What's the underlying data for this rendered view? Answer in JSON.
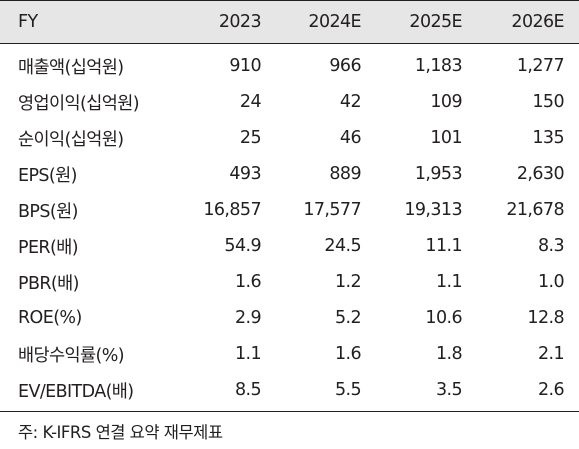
{
  "table": {
    "header": {
      "label": "FY",
      "years": [
        "2023",
        "2024E",
        "2025E",
        "2026E"
      ]
    },
    "rows": [
      {
        "label": "매출액(십억원)",
        "values": [
          "910",
          "966",
          "1,183",
          "1,277"
        ]
      },
      {
        "label": "영업이익(십억원)",
        "values": [
          "24",
          "42",
          "109",
          "150"
        ]
      },
      {
        "label": "순이익(십억원)",
        "values": [
          "25",
          "46",
          "101",
          "135"
        ]
      },
      {
        "label": "EPS(원)",
        "values": [
          "493",
          "889",
          "1,953",
          "2,630"
        ]
      },
      {
        "label": "BPS(원)",
        "values": [
          "16,857",
          "17,577",
          "19,313",
          "21,678"
        ]
      },
      {
        "label": "PER(배)",
        "values": [
          "54.9",
          "24.5",
          "11.1",
          "8.3"
        ]
      },
      {
        "label": "PBR(배)",
        "values": [
          "1.6",
          "1.2",
          "1.1",
          "1.0"
        ]
      },
      {
        "label": "ROE(%)",
        "values": [
          "2.9",
          "5.2",
          "10.6",
          "12.8"
        ]
      },
      {
        "label": "배당수익률(%)",
        "values": [
          "1.1",
          "1.6",
          "1.8",
          "2.1"
        ]
      },
      {
        "label": "EV/EBITDA(배)",
        "values": [
          "8.5",
          "5.5",
          "3.5",
          "2.6"
        ]
      }
    ]
  },
  "footnote": "주: K-IFRS 연결 요약 재무제표"
}
